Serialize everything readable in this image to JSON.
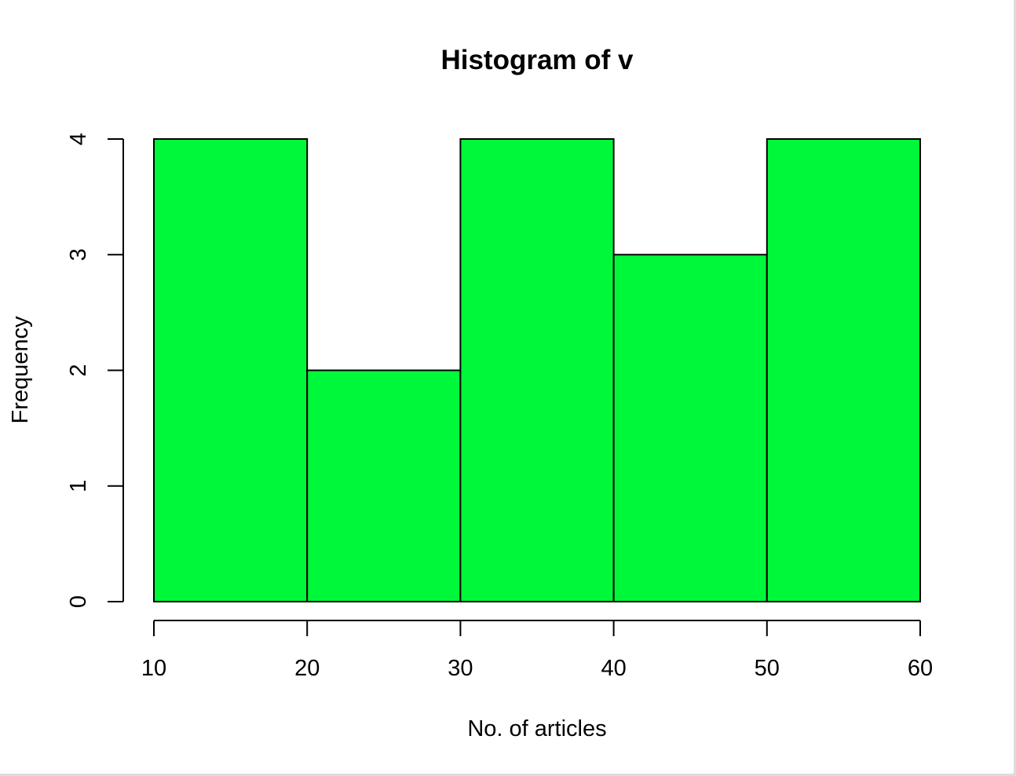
{
  "chart_data": {
    "type": "bar",
    "title": "Histogram of v",
    "xlabel": "No. of articles",
    "ylabel": "Frequency",
    "bins": [
      {
        "from": 10,
        "to": 20,
        "value": 4
      },
      {
        "from": 20,
        "to": 30,
        "value": 2
      },
      {
        "from": 30,
        "to": 40,
        "value": 4
      },
      {
        "from": 40,
        "to": 50,
        "value": 3
      },
      {
        "from": 50,
        "to": 60,
        "value": 4
      }
    ],
    "xlim": [
      10,
      60
    ],
    "ylim": [
      0,
      4
    ],
    "xticks": [
      "10",
      "20",
      "30",
      "40",
      "50",
      "60"
    ],
    "yticks": [
      "0",
      "1",
      "2",
      "3",
      "4"
    ],
    "bar_color": "#00f83a",
    "bar_edge_color": "#000000",
    "grid": false,
    "legend": "none"
  }
}
